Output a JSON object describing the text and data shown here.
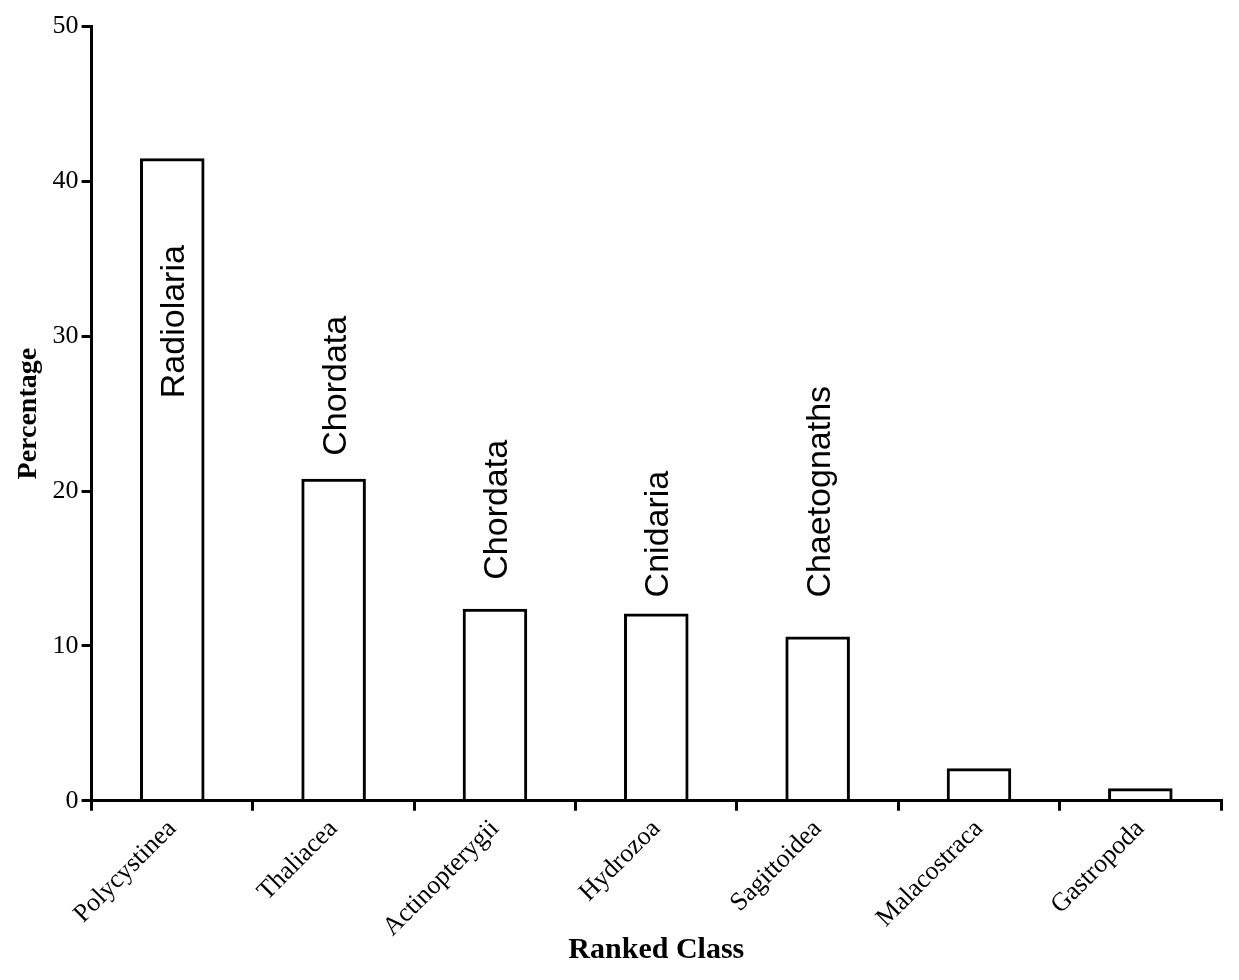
{
  "chart_data": {
    "type": "bar",
    "xlabel": "Ranked Class",
    "ylabel": "Percentage",
    "categories": [
      "Polycystinea",
      "Thaliacea",
      "Actinopterygii",
      "Hydrozoa",
      "Sagittoidea",
      "Malacostraca",
      "Gastropoda"
    ],
    "values": [
      41.5,
      20.8,
      12.4,
      12.1,
      10.6,
      2.1,
      0.8
    ],
    "color": "#000000",
    "ylim": [
      0,
      50
    ],
    "yticks": [
      0,
      10,
      20,
      30,
      40,
      50
    ],
    "grid": false,
    "legend": false,
    "annotations": [
      "Radiolaria",
      "Chordata",
      "Chordata",
      "Cnidaria",
      "Chaetognaths"
    ]
  }
}
